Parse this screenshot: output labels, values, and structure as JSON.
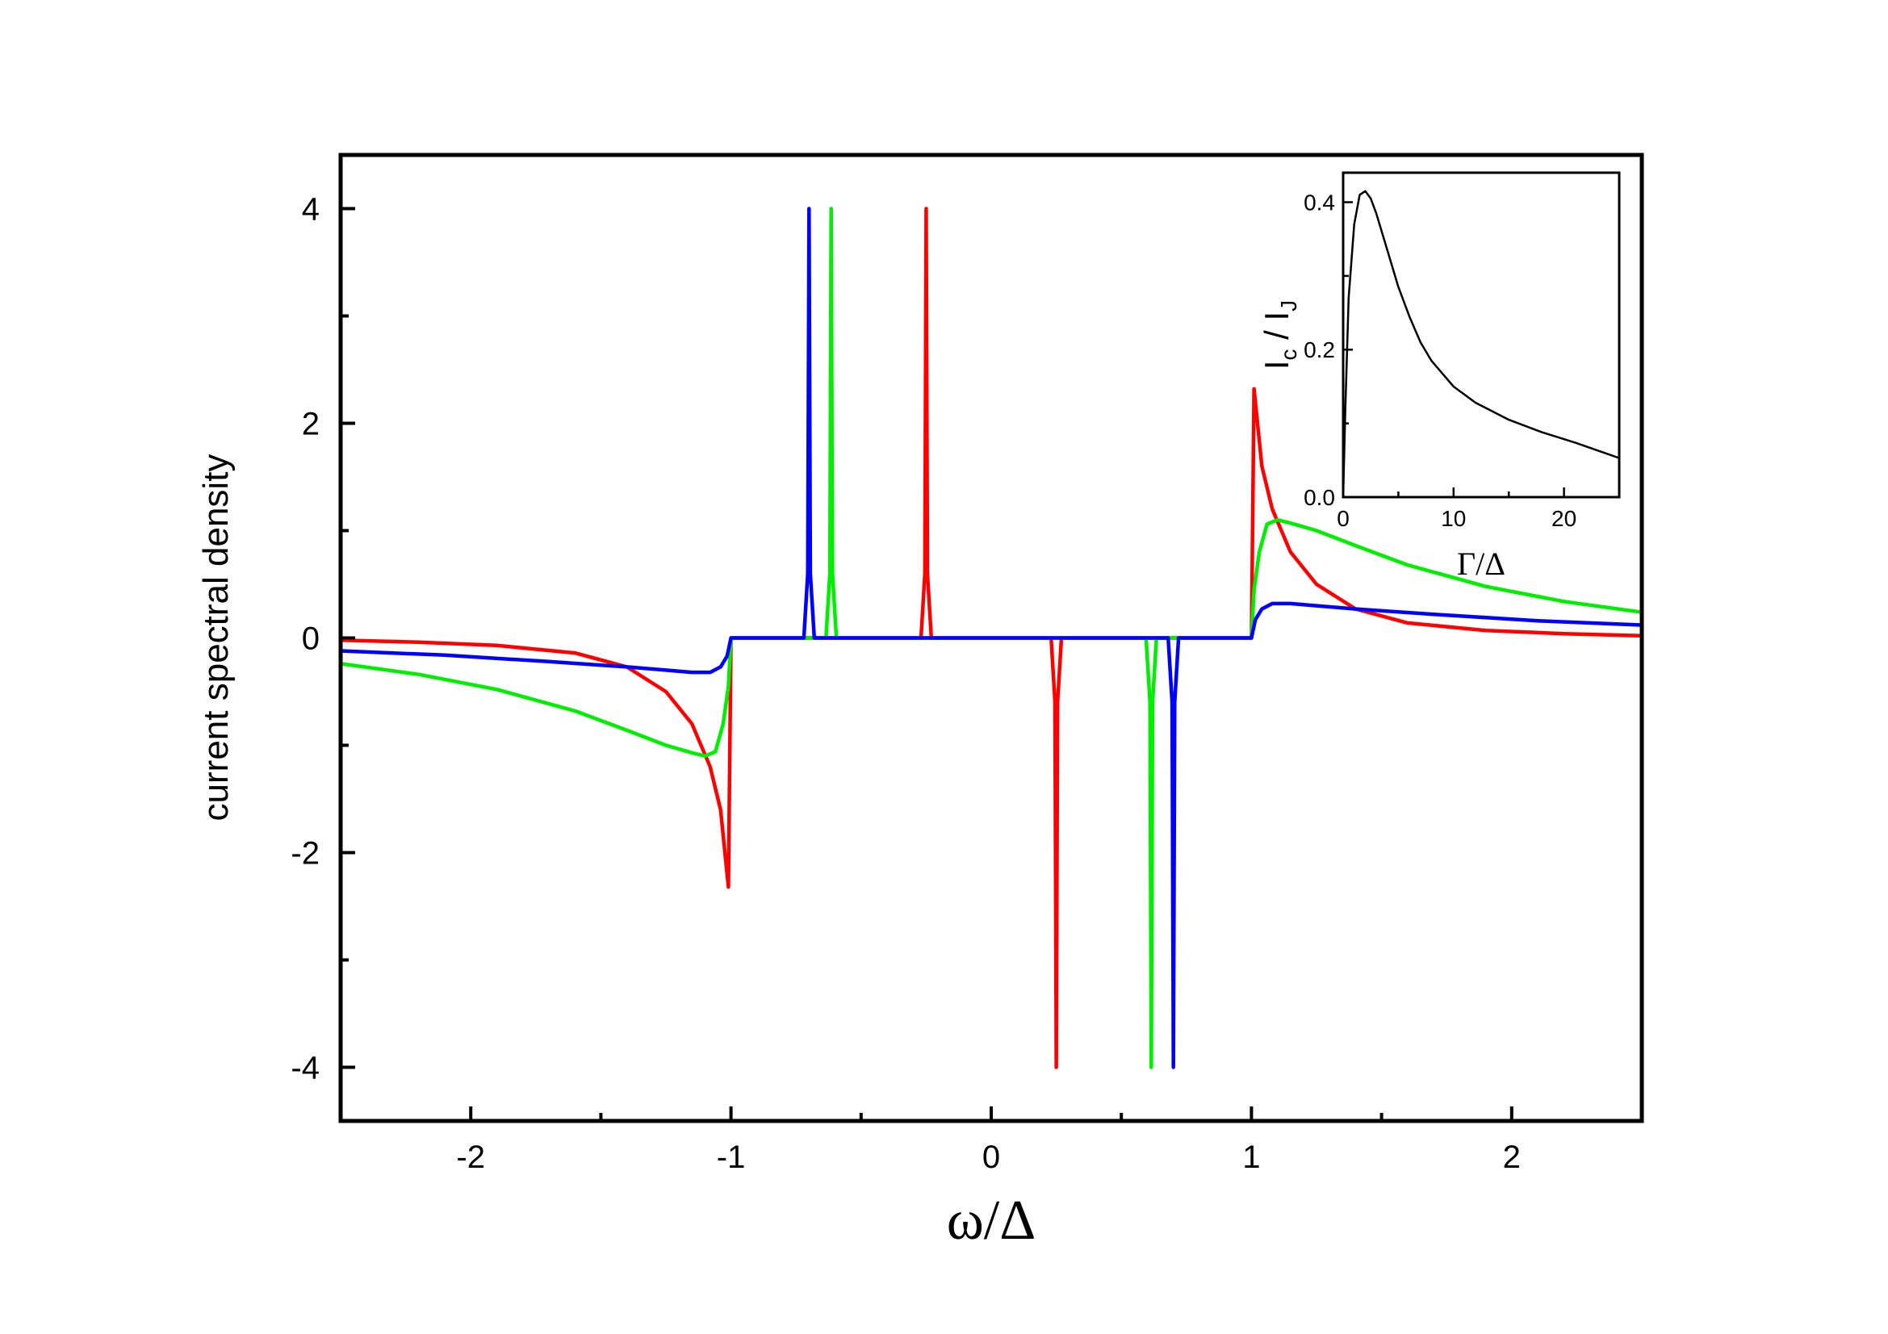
{
  "chart_data": [
    {
      "type": "line",
      "title": "",
      "xlabel": "ω/Δ",
      "ylabel": "current spectral density",
      "xlim": [
        -2.5,
        2.5
      ],
      "ylim": [
        -4.5,
        4.5
      ],
      "xticks": [
        -2,
        -1,
        0,
        1,
        2
      ],
      "xtick_labels": [
        "-2",
        "-1",
        "0",
        "1",
        "2"
      ],
      "xminor": [
        -2.5,
        -1.5,
        -0.5,
        0.5,
        1.5,
        2.5
      ],
      "yticks": [
        -4,
        -2,
        0,
        2,
        4
      ],
      "ytick_labels": [
        "-4",
        "-2",
        "0",
        "2",
        "4"
      ],
      "yminor": [
        -3,
        -1,
        1,
        3
      ],
      "grid": false,
      "legend": "none",
      "series": [
        {
          "color": "#ff0000",
          "x": [
            -2.5,
            -2.2,
            -1.9,
            -1.6,
            -1.4,
            -1.25,
            -1.15,
            -1.08,
            -1.04,
            -1.01,
            -1.0,
            -0.27,
            -0.255,
            -0.25,
            -0.245,
            -0.23,
            0.23,
            0.245,
            0.25,
            0.255,
            0.27,
            1.0,
            1.01,
            1.04,
            1.08,
            1.15,
            1.25,
            1.4,
            1.6,
            1.9,
            2.2,
            2.5
          ],
          "y": [
            -0.02,
            -0.04,
            -0.07,
            -0.14,
            -0.27,
            -0.5,
            -0.8,
            -1.2,
            -1.6,
            -2.32,
            0.0,
            0.0,
            0.6,
            4.0,
            0.6,
            0.0,
            0.0,
            -0.6,
            -4.0,
            -0.6,
            0.0,
            0.0,
            2.32,
            1.6,
            1.2,
            0.8,
            0.5,
            0.27,
            0.14,
            0.07,
            0.04,
            0.02
          ]
        },
        {
          "color": "#00ee00",
          "x": [
            -2.5,
            -2.2,
            -1.9,
            -1.6,
            -1.4,
            -1.25,
            -1.15,
            -1.1,
            -1.06,
            -1.03,
            -1.01,
            -1.0,
            -0.635,
            -0.62,
            -0.615,
            -0.61,
            -0.595,
            0.595,
            0.61,
            0.615,
            0.62,
            0.635,
            1.0,
            1.01,
            1.03,
            1.06,
            1.1,
            1.15,
            1.25,
            1.4,
            1.6,
            1.9,
            2.2,
            2.5
          ],
          "y": [
            -0.24,
            -0.34,
            -0.48,
            -0.68,
            -0.86,
            -1.0,
            -1.07,
            -1.1,
            -1.06,
            -0.8,
            -0.45,
            0.0,
            0.0,
            0.6,
            4.0,
            0.6,
            0.0,
            0.0,
            -0.6,
            -4.0,
            -0.6,
            0.0,
            0.0,
            0.45,
            0.8,
            1.06,
            1.1,
            1.07,
            1.0,
            0.86,
            0.68,
            0.48,
            0.34,
            0.24
          ]
        },
        {
          "color": "#0000ff",
          "x": [
            -2.5,
            -2.1,
            -1.7,
            -1.4,
            -1.25,
            -1.15,
            -1.08,
            -1.04,
            -1.015,
            -1.0,
            -0.72,
            -0.705,
            -0.7,
            -0.695,
            -0.68,
            0.68,
            0.695,
            0.7,
            0.705,
            0.72,
            1.0,
            1.015,
            1.04,
            1.08,
            1.15,
            1.25,
            1.4,
            1.7,
            2.1,
            2.5
          ],
          "y": [
            -0.12,
            -0.16,
            -0.22,
            -0.27,
            -0.3,
            -0.32,
            -0.32,
            -0.27,
            -0.17,
            0.0,
            0.0,
            0.6,
            4.0,
            0.6,
            0.0,
            0.0,
            -0.6,
            -4.0,
            -0.6,
            0.0,
            0.0,
            0.17,
            0.27,
            0.32,
            0.32,
            0.3,
            0.27,
            0.22,
            0.16,
            0.12
          ]
        }
      ]
    },
    {
      "type": "line",
      "title": "",
      "xlabel": "Γ/Δ",
      "ylabel_main": "I",
      "ylabel_sub": "c",
      "ylabel_sep": " / ",
      "ylabel_main2": "I",
      "ylabel_sub2": "J",
      "xlim": [
        0,
        25
      ],
      "ylim": [
        0,
        0.44
      ],
      "xticks": [
        0,
        10,
        20
      ],
      "xtick_labels": [
        "0",
        "10",
        "20"
      ],
      "xminor": [
        5,
        15,
        25
      ],
      "yticks": [
        0.0,
        0.2,
        0.4
      ],
      "ytick_labels": [
        "0.0",
        "0.2",
        "0.4"
      ],
      "yminor": [
        0.1,
        0.3
      ],
      "grid": false,
      "legend": "none",
      "series": [
        {
          "color": "#000000",
          "x": [
            0,
            0.2,
            0.5,
            1.0,
            1.5,
            2.0,
            2.5,
            3.0,
            4.0,
            5.0,
            6.0,
            7.0,
            8.0,
            10.0,
            12.0,
            15.0,
            18.0,
            21.0,
            25.0
          ],
          "y": [
            0.0,
            0.12,
            0.27,
            0.37,
            0.41,
            0.415,
            0.405,
            0.385,
            0.335,
            0.285,
            0.245,
            0.21,
            0.185,
            0.15,
            0.128,
            0.105,
            0.088,
            0.074,
            0.053
          ]
        }
      ]
    }
  ]
}
